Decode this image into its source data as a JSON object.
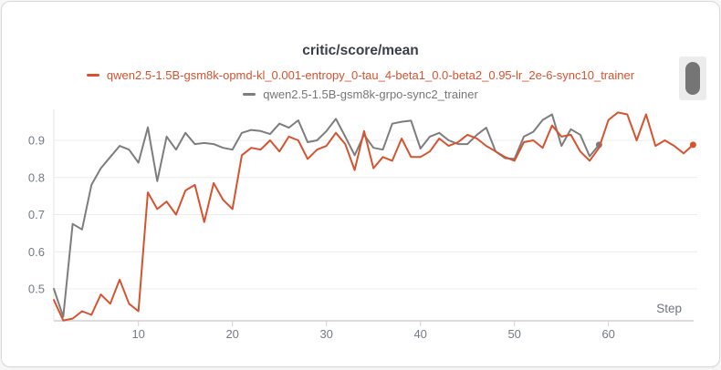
{
  "panel": {
    "scrollbar_present": true
  },
  "colors": {
    "card_background": "#ffffff",
    "card_border": "#d9d9d9",
    "title_text": "#3a3f46",
    "axis_text": "#737a85",
    "gridline": "#ececec",
    "axis_line": "#dcdcdc",
    "scroll_thumb": "#757575",
    "scroll_track": "#ececec",
    "series_red": "#d6532f",
    "series_gray": "#7d7d7d"
  },
  "chart_data": {
    "type": "line",
    "title": "critic/score/mean",
    "xlabel": "Step",
    "ylabel": "",
    "x_ticks": [
      10,
      20,
      30,
      40,
      50,
      60
    ],
    "y_ticks": [
      0.5,
      0.6,
      0.7,
      0.8,
      0.9
    ],
    "xlim": [
      1,
      69.3
    ],
    "ylim": [
      0.414,
      0.983
    ],
    "grid": true,
    "legend_position": "top",
    "x_step_start": 1,
    "x_step_increment": 1,
    "series": [
      {
        "name": "qwen2.5-1.5B-gsm8k-opmd-kl_0.001-entropy_0-tau_4-beta1_0.0-beta2_0.95-lr_2e-6-sync10_trainer",
        "color": "#d6532f",
        "label_color": "#d6532f",
        "values": [
          0.47,
          0.415,
          0.42,
          0.44,
          0.43,
          0.485,
          0.46,
          0.525,
          0.46,
          0.44,
          0.76,
          0.715,
          0.735,
          0.7,
          0.765,
          0.78,
          0.68,
          0.785,
          0.74,
          0.715,
          0.86,
          0.88,
          0.875,
          0.9,
          0.87,
          0.91,
          0.9,
          0.85,
          0.875,
          0.885,
          0.92,
          0.89,
          0.82,
          0.925,
          0.825,
          0.855,
          0.845,
          0.905,
          0.855,
          0.855,
          0.87,
          0.905,
          0.885,
          0.895,
          0.915,
          0.905,
          0.885,
          0.87,
          0.855,
          0.845,
          0.895,
          0.9,
          0.88,
          0.94,
          0.91,
          0.915,
          0.87,
          0.845,
          0.88,
          0.955,
          0.975,
          0.97,
          0.9,
          0.97,
          0.885,
          0.9,
          0.885,
          0.865,
          0.888
        ]
      },
      {
        "name": "qwen2.5-1.5B-gsm8k-grpo-sync2_trainer",
        "color": "#7d7d7d",
        "label_color": "#767676",
        "values": [
          0.5,
          0.425,
          0.675,
          0.66,
          0.78,
          0.825,
          0.855,
          0.885,
          0.875,
          0.84,
          0.935,
          0.79,
          0.91,
          0.875,
          0.92,
          0.89,
          0.893,
          0.89,
          0.88,
          0.875,
          0.92,
          0.928,
          0.925,
          0.917,
          0.945,
          0.934,
          0.954,
          0.895,
          0.9,
          0.925,
          0.958,
          0.91,
          0.86,
          0.915,
          0.88,
          0.875,
          0.945,
          0.95,
          0.953,
          0.878,
          0.91,
          0.92,
          0.9,
          0.89,
          0.89,
          0.915,
          0.934,
          0.87,
          0.852,
          0.85,
          0.91,
          0.923,
          0.955,
          0.97,
          0.885,
          0.93,
          0.915,
          0.857,
          0.888
        ]
      }
    ]
  }
}
